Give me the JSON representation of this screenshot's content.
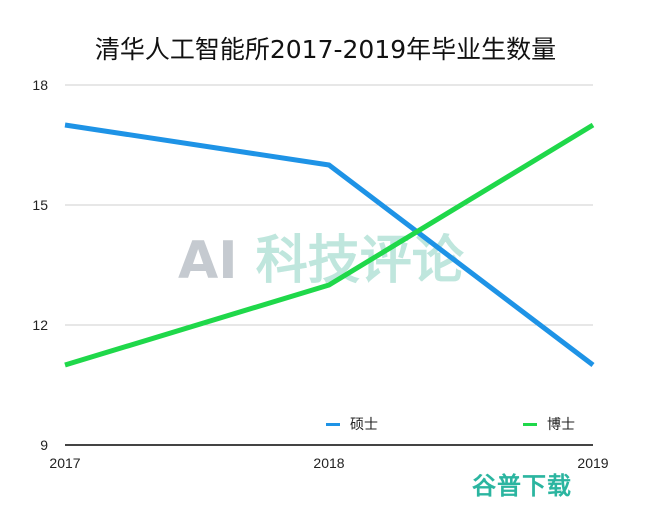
{
  "chart_data": {
    "type": "line",
    "title": "清华人工智能所2017-2019年毕业生数量",
    "xlabel": "",
    "ylabel": "",
    "x": [
      "2017",
      "2018",
      "2019"
    ],
    "series": [
      {
        "name": "硕士",
        "color": "#1e93e6",
        "values": [
          17,
          16,
          11
        ]
      },
      {
        "name": "博士",
        "color": "#1fd84a",
        "values": [
          11,
          13,
          17
        ]
      }
    ],
    "ylim": [
      9,
      18
    ],
    "yticks": [
      "18",
      "15",
      "12",
      "9"
    ],
    "grid": true,
    "legend_position": "bottom-inside"
  },
  "watermarks": {
    "center_ai": "AI",
    "center_cn": "科技评论",
    "bottom_right": "谷普下载"
  }
}
